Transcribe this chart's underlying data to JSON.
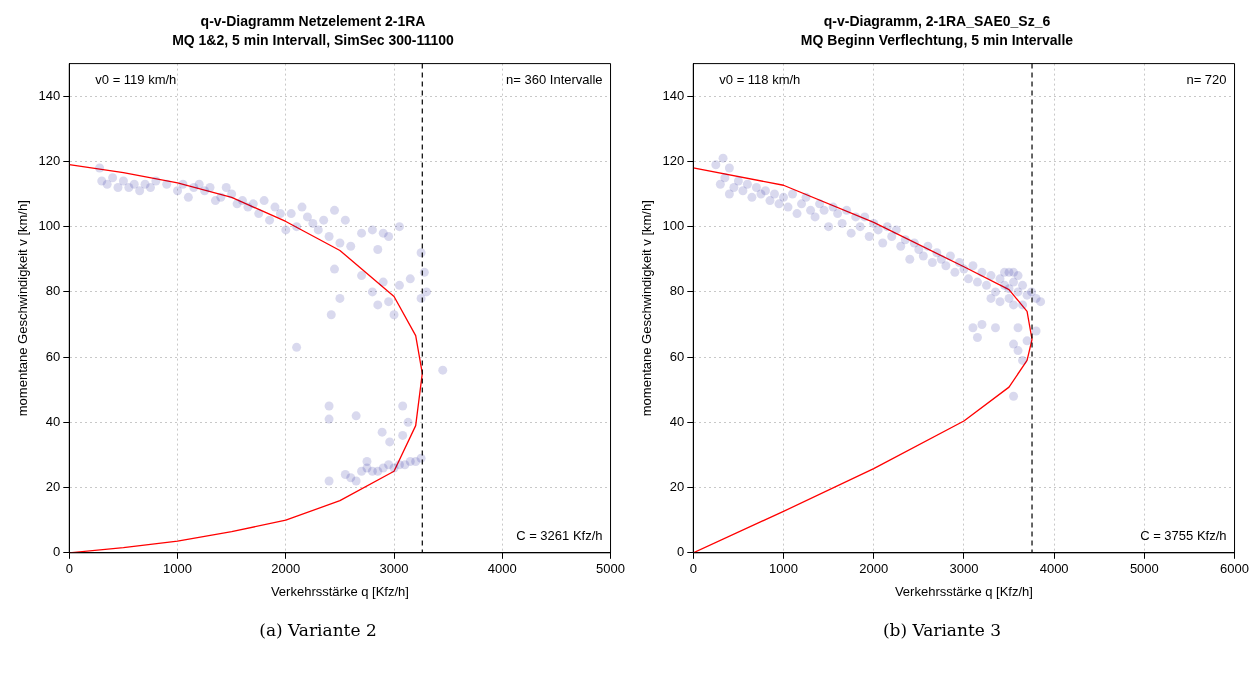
{
  "chart_data": [
    {
      "type": "scatter",
      "title": "q-v-Diagramm Netzelement 2-1RA",
      "subtitle": "MQ 1&2, 5 min Intervall, SimSec 300-11100",
      "xlabel": "Verkehrsstärke q [Kfz/h]",
      "ylabel": "momentane Geschwindigkeit v [km/h]",
      "xlim": [
        0,
        5000
      ],
      "xticks": [
        0,
        1000,
        2000,
        3000,
        4000,
        5000
      ],
      "ylim": [
        0,
        150
      ],
      "yticks": [
        0,
        20,
        40,
        60,
        80,
        100,
        120,
        140
      ],
      "grid": true,
      "legend": false,
      "series": [
        {
          "type": "scatter",
          "color": "#00008b",
          "marker": "circle",
          "x": [
            280,
            300,
            350,
            400,
            450,
            500,
            550,
            600,
            650,
            700,
            750,
            800,
            900,
            1000,
            1050,
            1100,
            1150,
            1200,
            1250,
            1300,
            1350,
            1400,
            1450,
            1500,
            1550,
            1600,
            1650,
            1700,
            1750,
            1800,
            1850,
            1900,
            1950,
            2000,
            2050,
            2100,
            2150,
            2200,
            2250,
            2300,
            2350,
            2400,
            2450,
            2500,
            2550,
            2600,
            2700,
            2800,
            2850,
            2900,
            2950,
            3050,
            3250,
            2500,
            2450,
            2700,
            2800,
            2850,
            2900,
            2950,
            3000,
            3050,
            3150,
            3250,
            3280,
            3300,
            2420,
            2100,
            3450,
            3080,
            2400,
            2650,
            2400,
            2890,
            2960,
            3130,
            3080,
            2400,
            2550,
            2600,
            2650,
            2700,
            2750,
            2800,
            2850,
            2900,
            2950,
            3000,
            3050,
            3100,
            3150,
            3200,
            3250,
            2750
          ],
          "values": [
            118,
            114,
            113,
            115,
            112,
            114,
            112,
            113,
            111,
            113,
            112,
            114,
            113,
            111,
            113,
            109,
            112,
            113,
            111,
            112,
            108,
            109,
            112,
            110,
            107,
            108,
            106,
            107,
            104,
            108,
            102,
            106,
            104,
            99,
            104,
            100,
            106,
            103,
            101,
            99,
            102,
            97,
            105,
            95,
            102,
            94,
            98,
            99,
            93,
            98,
            97,
            100,
            92,
            78,
            87,
            85,
            80,
            76,
            83,
            77,
            73,
            82,
            84,
            78,
            86,
            80,
            73,
            63,
            56,
            45,
            45,
            42,
            41,
            37,
            34,
            40,
            36,
            22,
            24,
            23,
            22,
            25,
            26,
            25,
            25,
            26,
            27,
            26,
            27,
            27,
            28,
            28,
            29,
            28
          ]
        },
        {
          "type": "line",
          "color": "#ff0000",
          "marker": "none",
          "x": [
            0,
            500,
            1000,
            1500,
            2000,
            2500,
            3000,
            3200,
            3261,
            3200,
            3000,
            2500,
            2000,
            1500,
            1000,
            500,
            0
          ],
          "values": [
            119,
            116.6,
            113.4,
            109,
            101.6,
            92.7,
            78.6,
            66.6,
            55,
            39,
            25,
            16,
            10,
            6.5,
            3.6,
            1.6,
            0
          ]
        }
      ],
      "ref_lines": [
        {
          "axis": "x",
          "value": 3261,
          "label": "C = 3261 Kfz/h",
          "color": "#000000",
          "line_style": "dashed"
        }
      ],
      "annotations": [
        "v0 = 119 km/h",
        "n= 360 Intervalle",
        "(a) Variante 2"
      ]
    },
    {
      "type": "scatter",
      "title": "q-v-Diagramm, 2-1RA_SAE0_Sz_6",
      "subtitle": "MQ Beginn Verflechtung, 5 min Intervalle",
      "xlabel": "Verkehrsstärke q [Kfz/h]",
      "ylabel": "momentane Geschwindigkeit v [km/h]",
      "xlim": [
        0,
        6000
      ],
      "xticks": [
        0,
        1000,
        2000,
        3000,
        4000,
        5000,
        6000
      ],
      "ylim": [
        0,
        150
      ],
      "yticks": [
        0,
        20,
        40,
        60,
        80,
        100,
        120,
        140
      ],
      "grid": true,
      "legend": false,
      "series": [
        {
          "type": "scatter",
          "color": "#00008b",
          "marker": "circle",
          "x": [
            250,
            330,
            400,
            300,
            350,
            400,
            450,
            500,
            550,
            600,
            650,
            700,
            750,
            800,
            850,
            900,
            950,
            1000,
            1050,
            1100,
            1150,
            1200,
            1250,
            1300,
            1350,
            1400,
            1450,
            1500,
            1550,
            1600,
            1650,
            1700,
            1750,
            1800,
            1850,
            1900,
            1950,
            2000,
            2050,
            2100,
            2150,
            2200,
            2250,
            2300,
            2350,
            2400,
            2450,
            2500,
            2550,
            2600,
            2650,
            2700,
            2750,
            2800,
            2850,
            2900,
            2950,
            3000,
            3050,
            3100,
            3150,
            3200,
            3250,
            3300,
            3350,
            3400,
            3450,
            3500,
            3550,
            3600,
            3650,
            3700,
            3750,
            3800,
            3850,
            3500,
            3550,
            3450,
            3400,
            3300,
            3600,
            3650,
            3200,
            3100,
            3150,
            3350,
            3600,
            3550,
            3700,
            3800,
            3600,
            3650,
            3550,
            3500,
            3550
          ],
          "values": [
            119,
            121,
            118,
            113,
            115,
            110,
            112,
            114,
            111,
            113,
            109,
            112,
            110,
            111,
            108,
            110,
            107,
            109,
            106,
            110,
            104,
            107,
            109,
            105,
            103,
            107,
            105,
            100,
            106,
            104,
            101,
            105,
            98,
            103,
            100,
            103,
            97,
            101,
            99,
            95,
            100,
            97,
            99,
            94,
            96,
            90,
            95,
            93,
            91,
            94,
            89,
            92,
            90,
            88,
            91,
            86,
            89,
            87,
            84,
            88,
            83,
            86,
            82,
            85,
            80,
            84,
            82,
            81,
            83,
            80,
            82,
            79,
            80,
            78,
            77,
            78,
            76,
            86,
            77,
            78,
            85,
            76,
            70,
            69,
            66,
            69,
            69,
            64,
            65,
            68,
            62,
            59,
            48,
            86,
            86
          ]
        },
        {
          "type": "line",
          "color": "#ff0000",
          "marker": "none",
          "x": [
            0,
            1000,
            2000,
            3000,
            3500,
            3700,
            3755,
            3700,
            3500,
            3000,
            2000,
            1000,
            0
          ],
          "values": [
            118,
            112.7,
            101.3,
            87.7,
            80.7,
            74,
            65.4,
            59,
            50.8,
            40.4,
            25.8,
            12.7,
            0
          ]
        }
      ],
      "ref_lines": [
        {
          "axis": "x",
          "value": 3755,
          "label": "C = 3755 Kfz/h",
          "color": "#000000",
          "line_style": "dashed"
        }
      ],
      "annotations": [
        "v0 = 118 km/h",
        "n= 720",
        "(b) Variante 3"
      ]
    }
  ]
}
